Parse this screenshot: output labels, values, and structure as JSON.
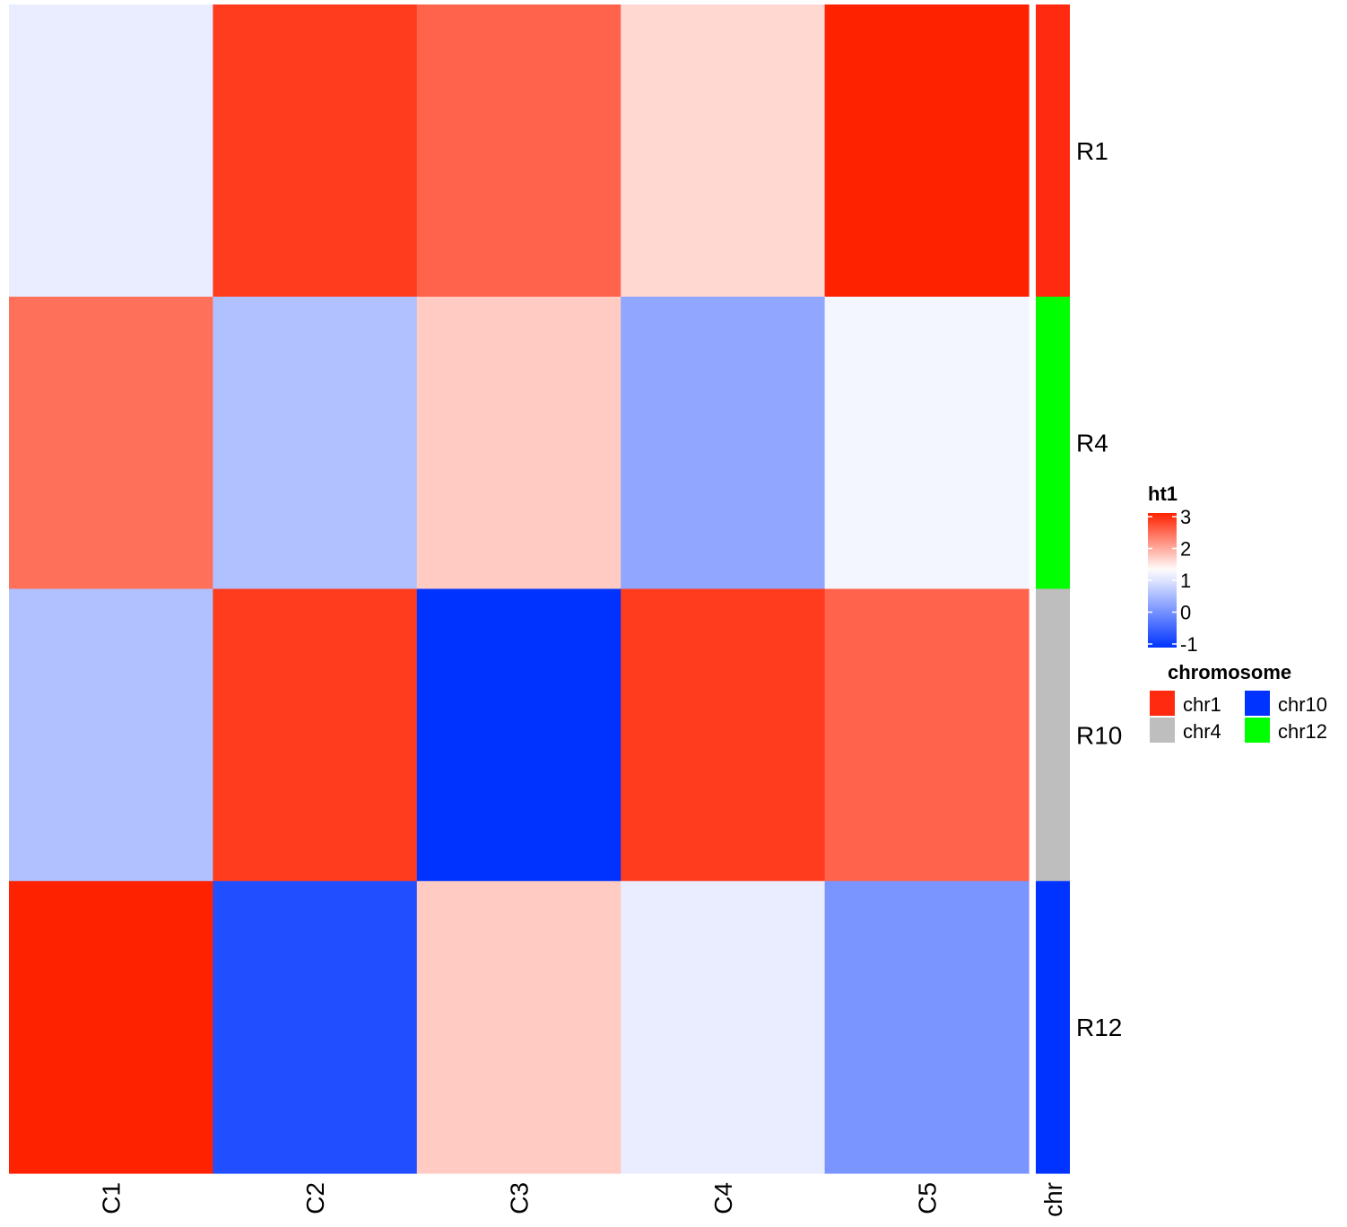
{
  "chart_data": {
    "type": "heatmap",
    "rows": [
      "R1",
      "R4",
      "R10",
      "R12"
    ],
    "columns": [
      "C1",
      "C2",
      "C3",
      "C4",
      "C5"
    ],
    "values": [
      [
        1.1,
        2.8,
        2.5,
        1.6,
        3.0
      ],
      [
        2.4,
        0.6,
        1.7,
        0.3,
        1.2
      ],
      [
        0.6,
        2.8,
        -1.0,
        2.8,
        2.5
      ],
      [
        3.0,
        -0.7,
        1.7,
        1.1,
        0.1
      ]
    ],
    "row_annotation": {
      "axis_label": "chr",
      "values": [
        "chr1",
        "chr12",
        "chr4",
        "chr10"
      ]
    },
    "color_legend": {
      "title": "ht1",
      "ticks": [
        "3",
        "2",
        "1",
        "0",
        "-1"
      ],
      "tick_values": [
        3,
        2,
        1,
        0,
        -1
      ],
      "range": [
        -1,
        3
      ],
      "colors": {
        "low": "#0033ff",
        "mid": "#ffffff",
        "high": "#ff2200"
      },
      "mid_value": 1.3
    },
    "category_legend": {
      "title": "chromosome",
      "items": [
        {
          "label": "chr1",
          "color": "#ff2a10"
        },
        {
          "label": "chr4",
          "color": "#bebebe"
        },
        {
          "label": "chr10",
          "color": "#0033ff"
        },
        {
          "label": "chr12",
          "color": "#00ff00"
        }
      ]
    }
  }
}
